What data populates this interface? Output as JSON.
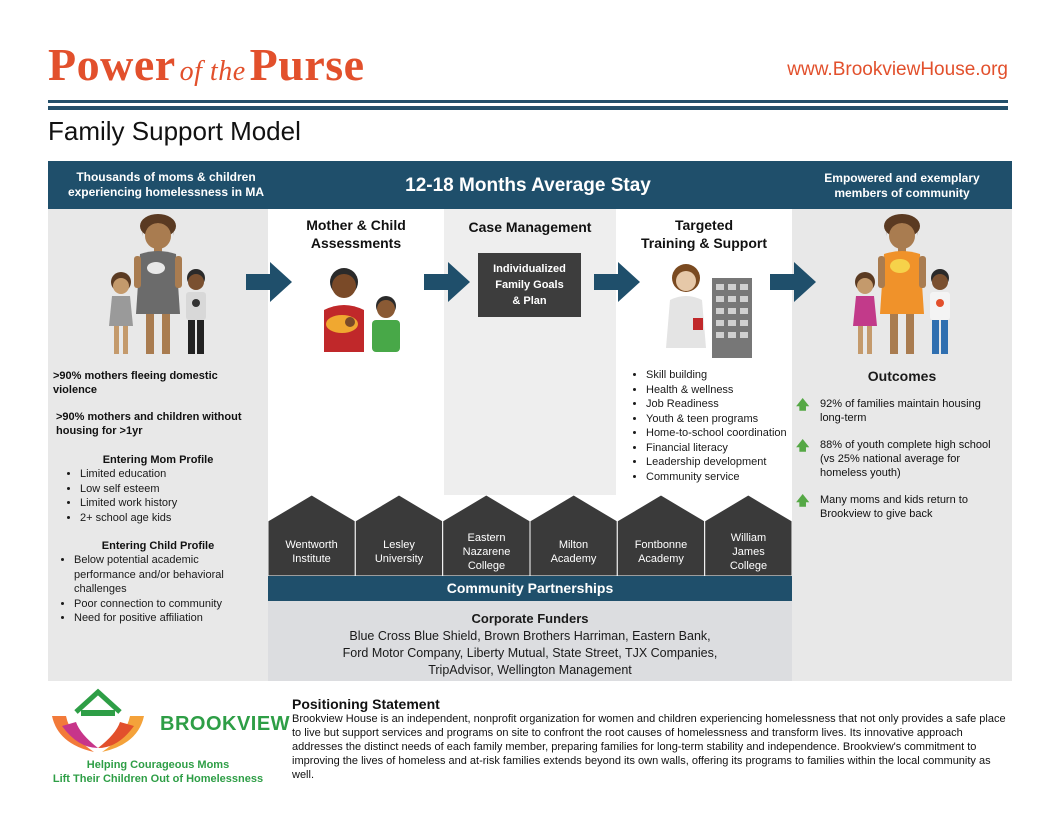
{
  "header": {
    "title_big1": "Power",
    "title_small": "of the",
    "title_big2": "Purse",
    "url": "www.BrookviewHouse.org",
    "subtitle": "Family Support Model"
  },
  "band": {
    "left_line1": "Thousands of moms & children",
    "left_line2": "experiencing homelessness in MA",
    "center": "12-18 Months Average Stay",
    "right_line1": "Empowered and exemplary",
    "right_line2": "members of community"
  },
  "left": {
    "stat1_line1": ">90% mothers fleeing domestic",
    "stat1_line2": "violence",
    "stat2_line1": ">90% mothers and children without",
    "stat2_line2": "housing for >1yr",
    "mom_heading": "Entering Mom Profile",
    "mom_items": [
      "Limited education",
      "Low self esteem",
      "Limited work history",
      "2+ school age kids"
    ],
    "child_heading": "Entering Child Profile",
    "child_items": [
      "Below potential academic performance and/or behavioral challenges",
      "Poor connection to community",
      "Need for positive affiliation"
    ]
  },
  "columns": {
    "col1_line1": "Mother & Child",
    "col1_line2": "Assessments",
    "col2": "Case Management",
    "col2_box_line1": "Individualized",
    "col2_box_line2": "Family Goals",
    "col2_box_line3": "& Plan",
    "col3_line1": "Targeted",
    "col3_line2": "Training & Support",
    "col3_items": [
      "Skill building",
      "Health & wellness",
      "Job Readiness",
      "Youth & teen programs",
      "Home-to-school coordination",
      "Financial literacy",
      "Leadership development",
      "Community service"
    ]
  },
  "outcomes": {
    "heading": "Outcomes",
    "o1_line1": "92% of families maintain housing",
    "o1_line2": "long-term",
    "o2_line1": "88% of youth complete high school",
    "o2_line2": "(vs 25% national average for",
    "o2_line3": "homeless youth)",
    "o3_line1": "Many moms and kids return to",
    "o3_line2": "Brookview to give back"
  },
  "partners": {
    "p1_l1": "Wentworth",
    "p1_l2": "Institute",
    "p2_l1": "Lesley",
    "p2_l2": "University",
    "p3_l1": "Eastern",
    "p3_l2": "Nazarene",
    "p3_l3": "College",
    "p4_l1": "Milton",
    "p4_l2": "Academy",
    "p5_l1": "Fontbonne",
    "p5_l2": "Academy",
    "p6_l1": "William",
    "p6_l2": "James",
    "p6_l3": "College",
    "band": "Community Partnerships"
  },
  "funders": {
    "heading": "Corporate Funders",
    "line1": "Blue Cross Blue Shield, Brown Brothers Harriman, Eastern Bank,",
    "line2": "Ford Motor Company, Liberty Mutual, State Street, TJX Companies,",
    "line3": "TripAdvisor, Wellington Management"
  },
  "footer": {
    "brand": "BROOKVIEW",
    "tagline_line1": "Helping Courageous Moms",
    "tagline_line2": "Lift Their Children Out of Homelessness",
    "pos_heading": "Positioning Statement",
    "pos_body": "Brookview House is an independent, nonprofit organization for women and children experiencing homelessness that not only provides a safe place to live but support services and programs on site to confront the root causes of homelessness and transform lives.  Its innovative approach addresses the distinct needs of each family member, preparing families for long-term stability and independence.  Brookview's commitment to improving the lives of homeless and at-risk families extends beyond its own walls, offering its programs to families within the local community as well."
  },
  "colors": {
    "accent": "#e2502c",
    "navy": "#1f4f6b",
    "green": "#2e9e46"
  }
}
